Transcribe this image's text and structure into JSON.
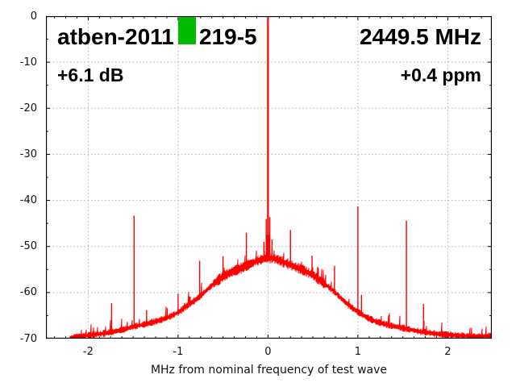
{
  "chart_data": {
    "type": "line",
    "title_left_prefix": "atben-2011",
    "title_left_suffix": "219-5",
    "title_right": "2449.5 MHz",
    "annotation_left": "+6.1 dB",
    "annotation_right": "+0.4 ppm",
    "xlabel": "MHz from nominal frequency of test wave",
    "xlim": [
      -2.47,
      2.49
    ],
    "ylim": [
      -70,
      0
    ],
    "xticks": [
      -2,
      -1,
      0,
      1,
      2
    ],
    "yticks": [
      0,
      -10,
      -20,
      -30,
      -40,
      -50,
      -60,
      -70
    ],
    "x_minor_step": 0.125,
    "y_minor_step": 5,
    "grid": true,
    "legend": "none",
    "colors": {
      "trace": "#ff0000",
      "grid": "#b0b0b0",
      "frame": "#000000",
      "marker_block": "#00bb00",
      "text": "#111111"
    },
    "carrier": {
      "x": 0,
      "peak_db": 0
    },
    "spurs": [
      [
        -1.74,
        -62.3
      ],
      [
        -1.49,
        -43.3
      ],
      [
        -1.35,
        -63.8
      ],
      [
        -1.12,
        -63.4
      ],
      [
        -1.0,
        -60.3
      ],
      [
        -0.76,
        -53.1
      ],
      [
        -0.5,
        -52.1
      ],
      [
        -0.24,
        -47.0
      ],
      [
        -0.045,
        -49.0
      ],
      [
        -0.02,
        -44.0
      ],
      [
        0.02,
        -43.6
      ],
      [
        0.045,
        -48.5
      ],
      [
        0.25,
        -46.4
      ],
      [
        0.49,
        -52.0
      ],
      [
        0.74,
        -54.2
      ],
      [
        1.0,
        -41.3
      ],
      [
        1.04,
        -60.5
      ],
      [
        1.54,
        -44.4
      ],
      [
        1.73,
        -62.5
      ]
    ],
    "noise_envelope": [
      [
        -2.2,
        -69.9
      ],
      [
        -2.0,
        -69.3
      ],
      [
        -1.8,
        -68.8
      ],
      [
        -1.6,
        -68.0
      ],
      [
        -1.5,
        -67.4
      ],
      [
        -1.35,
        -66.8
      ],
      [
        -1.2,
        -66.0
      ],
      [
        -1.1,
        -65.3
      ],
      [
        -1.0,
        -64.3
      ],
      [
        -0.9,
        -62.9
      ],
      [
        -0.8,
        -61.5
      ],
      [
        -0.75,
        -60.7
      ],
      [
        -0.7,
        -59.8
      ],
      [
        -0.6,
        -58.0
      ],
      [
        -0.5,
        -56.5
      ],
      [
        -0.4,
        -55.5
      ],
      [
        -0.3,
        -54.7
      ],
      [
        -0.25,
        -54.3
      ],
      [
        -0.2,
        -53.8
      ],
      [
        -0.1,
        -53.0
      ],
      [
        0.0,
        -52.4
      ],
      [
        0.1,
        -52.8
      ],
      [
        0.2,
        -53.6
      ],
      [
        0.25,
        -54.0
      ],
      [
        0.3,
        -54.4
      ],
      [
        0.4,
        -55.2
      ],
      [
        0.5,
        -56.2
      ],
      [
        0.6,
        -57.6
      ],
      [
        0.7,
        -59.2
      ],
      [
        0.75,
        -60.0
      ],
      [
        0.8,
        -61.0
      ],
      [
        0.9,
        -62.8
      ],
      [
        1.0,
        -64.2
      ],
      [
        1.1,
        -65.4
      ],
      [
        1.2,
        -66.3
      ],
      [
        1.35,
        -67.1
      ],
      [
        1.5,
        -67.7
      ],
      [
        1.7,
        -68.5
      ],
      [
        1.9,
        -69.0
      ],
      [
        2.1,
        -69.3
      ],
      [
        2.3,
        -69.5
      ],
      [
        2.49,
        -69.4
      ]
    ],
    "trace_x_start": -2.2,
    "trace_x_end": 2.49
  }
}
